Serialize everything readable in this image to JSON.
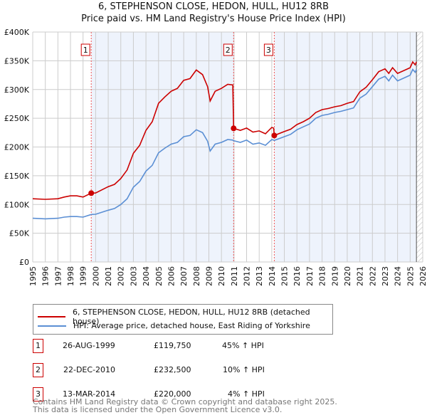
{
  "chart_data": {
    "type": "line",
    "title": "6, STEPHENSON CLOSE, HEDON, HULL, HU12 8RB",
    "subtitle": "Price paid vs. HM Land Registry's House Price Index (HPI)",
    "xlim": [
      1995,
      2026
    ],
    "ylim": [
      0,
      400000
    ],
    "y_ticks": [
      {
        "v": 0,
        "label": "£0"
      },
      {
        "v": 50000,
        "label": "£50K"
      },
      {
        "v": 100000,
        "label": "£100K"
      },
      {
        "v": 150000,
        "label": "£150K"
      },
      {
        "v": 200000,
        "label": "£200K"
      },
      {
        "v": 250000,
        "label": "£250K"
      },
      {
        "v": 300000,
        "label": "£300K"
      },
      {
        "v": 350000,
        "label": "£350K"
      },
      {
        "v": 400000,
        "label": "£400K"
      }
    ],
    "x_ticks": [
      "1995",
      "1996",
      "1997",
      "1998",
      "1999",
      "2000",
      "2001",
      "2002",
      "2003",
      "2004",
      "2005",
      "2006",
      "2007",
      "2008",
      "2009",
      "2010",
      "2011",
      "2012",
      "2013",
      "2014",
      "2015",
      "2016",
      "2017",
      "2018",
      "2019",
      "2020",
      "2021",
      "2022",
      "2023",
      "2024",
      "2025",
      "2026"
    ],
    "grid": true,
    "x": [
      1995,
      1996,
      1997,
      1997.5,
      1998,
      1998.5,
      1999,
      1999.65,
      2000,
      2001,
      2001.5,
      2002,
      2002.5,
      2003,
      2003.5,
      2004,
      2004.5,
      2005,
      2005.5,
      2006,
      2006.5,
      2007,
      2007.5,
      2008,
      2008.5,
      2008.9,
      2009.1,
      2009.5,
      2010,
      2010.5,
      2010.9,
      2010.97,
      2011.5,
      2012,
      2012.5,
      2013,
      2013.5,
      2014,
      2014.15,
      2014.2,
      2015,
      2015.5,
      2016,
      2016.5,
      2017,
      2017.5,
      2018,
      2018.5,
      2019,
      2019.5,
      2020,
      2020.5,
      2021,
      2021.5,
      2022,
      2022.5,
      2023,
      2023.3,
      2023.6,
      2024,
      2024.5,
      2025,
      2025.2,
      2025.4,
      2025.5
    ],
    "series": [
      {
        "name": "6, STEPHENSON CLOSE, HEDON, HULL, HU12 8RB (detached house)",
        "color": "#cc0000",
        "values": [
          110,
          109,
          110,
          113,
          115,
          115,
          113,
          119.75,
          120,
          131,
          135,
          145,
          160,
          189,
          203,
          229,
          244,
          276,
          287,
          297,
          302,
          316,
          319,
          334,
          326,
          305,
          280,
          297,
          302,
          309,
          308,
          232.5,
          229,
          233,
          226,
          228,
          223,
          234,
          233,
          220,
          227,
          231,
          239,
          244,
          250,
          260,
          265,
          267,
          270,
          272,
          276,
          279,
          296,
          304,
          317,
          331,
          336,
          328,
          338,
          328,
          333,
          338,
          348,
          343,
          348
        ]
      },
      {
        "name": "HPI: Average price, detached house, East Riding of Yorkshire",
        "color": "#5b8fd4",
        "values": [
          76,
          75,
          76,
          78,
          79,
          79,
          78,
          82.6,
          83,
          90,
          93,
          100,
          110,
          130,
          140,
          158,
          168,
          190,
          198,
          205,
          208,
          218,
          220,
          230,
          225,
          210,
          193,
          205,
          208,
          213,
          212,
          211,
          208,
          212,
          205,
          207,
          203,
          213,
          212,
          211.5,
          218,
          222,
          230,
          235,
          240,
          250,
          255,
          257,
          260,
          262,
          265,
          268,
          285,
          292,
          305,
          318,
          323,
          315,
          325,
          315,
          320,
          325,
          335,
          330,
          335
        ]
      }
    ],
    "value_unit": "thousand GBP",
    "sales": [
      {
        "label": "1",
        "x": 1999.65,
        "price": 119750,
        "date": "26-AUG-1999",
        "price_text": "£119,750",
        "hpi_text": "45% ↑ HPI"
      },
      {
        "label": "2",
        "x": 2010.97,
        "price": 232500,
        "date": "22-DEC-2010",
        "price_text": "£232,500",
        "hpi_text": "10% ↑ HPI"
      },
      {
        "label": "3",
        "x": 2014.2,
        "price": 220000,
        "date": "13-MAR-2014",
        "price_text": "£220,000",
        "hpi_text": "4% ↑ HPI"
      }
    ],
    "forecast_from": 2025.5
  },
  "footer": [
    "Contains HM Land Registry data © Crown copyright and database right 2025.",
    "This data is licensed under the Open Government Licence v3.0."
  ]
}
